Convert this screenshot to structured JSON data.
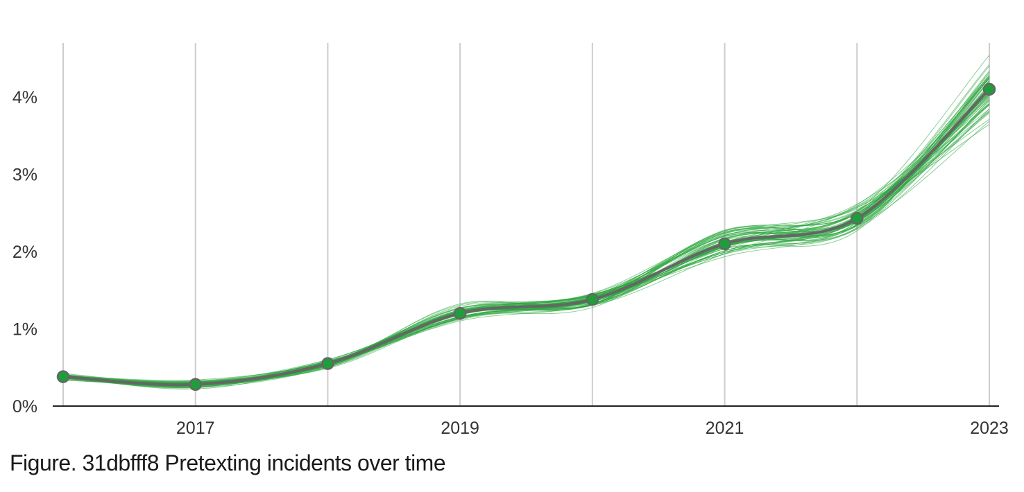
{
  "caption": "Figure. 31dbfff8 Pretexting incidents over time",
  "chart_data": {
    "type": "line",
    "title": "",
    "xlabel": "",
    "ylabel": "",
    "x": [
      2016,
      2017,
      2018,
      2019,
      2020,
      2021,
      2022,
      2023
    ],
    "x_tick_labels": [
      "2017",
      "2019",
      "2021",
      "2023"
    ],
    "x_tick_values": [
      2017,
      2019,
      2021,
      2023
    ],
    "gridlines_x": [
      2016,
      2017,
      2018,
      2019,
      2020,
      2021,
      2022,
      2023
    ],
    "xlim": [
      2016,
      2023
    ],
    "ylim": [
      0,
      0.047
    ],
    "y_tick_values": [
      0,
      0.01,
      0.02,
      0.03,
      0.04
    ],
    "y_tick_labels": [
      "0%",
      "1%",
      "2%",
      "3%",
      "4%"
    ],
    "grid": "vertical",
    "legend": "none",
    "series": [
      {
        "values": [
          0.0038,
          0.0028,
          0.0055,
          0.012,
          0.0138,
          0.021,
          0.0243,
          0.041
        ]
      }
    ],
    "uncertainty_band": {
      "description_lines": 60,
      "spread": [
        0.0003,
        0.0004,
        0.0004,
        0.0008,
        0.0008,
        0.0013,
        0.0015,
        0.003
      ]
    },
    "colors": {
      "median_line": "#666666",
      "marker_fill": "#1e9e3a",
      "band_lines": "#2ca53e",
      "grid": "#cccccc",
      "axis": "#222222"
    }
  }
}
